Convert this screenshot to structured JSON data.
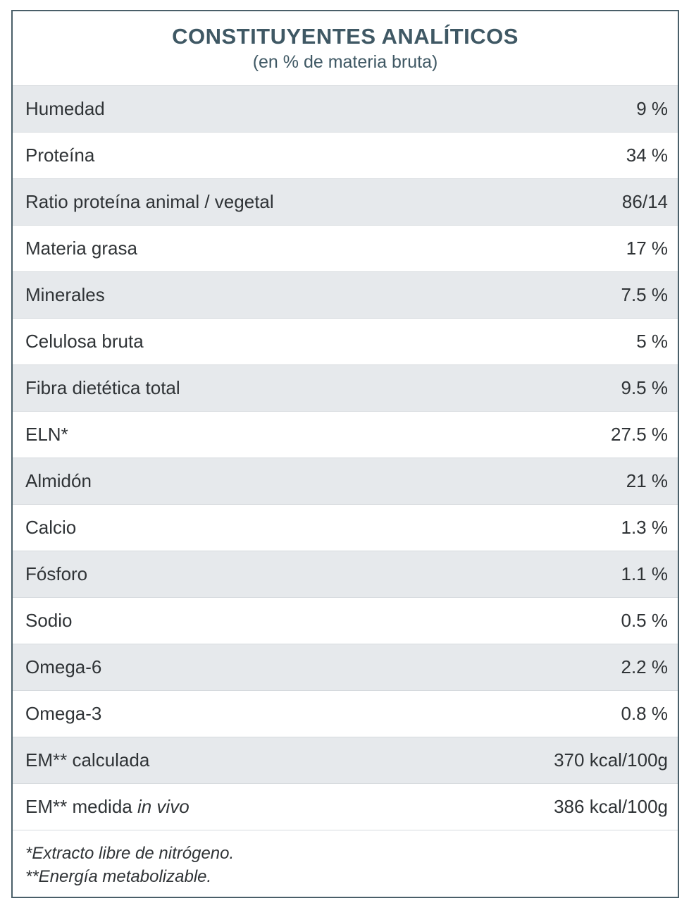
{
  "table": {
    "title": "CONSTITUYENTES ANALÍTICOS",
    "subtitle": "(en % de materia bruta)",
    "rows": [
      {
        "label": "Humedad",
        "value": "9 %"
      },
      {
        "label": "Proteína",
        "value": "34 %"
      },
      {
        "label": "Ratio proteína animal / vegetal",
        "value": "86/14"
      },
      {
        "label": "Materia grasa",
        "value": "17 %"
      },
      {
        "label": "Minerales",
        "value": "7.5 %"
      },
      {
        "label": "Celulosa bruta",
        "value": "5 %"
      },
      {
        "label": "Fibra dietética total",
        "value": "9.5 %"
      },
      {
        "label": "ELN*",
        "value": "27.5 %"
      },
      {
        "label": "Almidón",
        "value": "21 %"
      },
      {
        "label": "Calcio",
        "value": "1.3 %"
      },
      {
        "label": "Fósforo",
        "value": "1.1 %"
      },
      {
        "label": "Sodio",
        "value": "0.5 %"
      },
      {
        "label": "Omega-6",
        "value": "2.2 %"
      },
      {
        "label": "Omega-3",
        "value": "0.8 %"
      },
      {
        "label": "EM** calculada",
        "value": "370 kcal/100g"
      },
      {
        "label_prefix": "EM** medida ",
        "label_italic": "in vivo",
        "value": "386 kcal/100g"
      }
    ],
    "footnotes": [
      "*Extracto libre de nitrógeno.",
      "**Energía metabolizable."
    ]
  },
  "colors": {
    "title": "#3f5864",
    "border": "#4a5f69",
    "shaded_row": "#e6e9ec",
    "text": "#2f3336"
  }
}
